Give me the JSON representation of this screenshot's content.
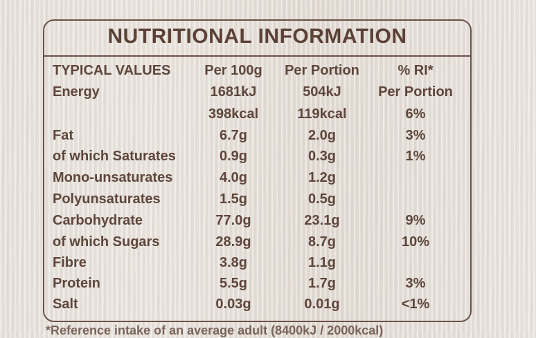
{
  "title": "NUTRITIONAL INFORMATION",
  "headers": {
    "label": "TYPICAL VALUES",
    "per100": "Per 100g",
    "portion": "Per Portion",
    "ri": "% RI*"
  },
  "rows": [
    {
      "label": "Energy",
      "per100": "1681kJ",
      "portion": "504kJ",
      "ri": "Per Portion"
    },
    {
      "label": "",
      "per100": "398kcal",
      "portion": "119kcal",
      "ri": "6%"
    },
    {
      "label": "Fat",
      "per100": "6.7g",
      "portion": "2.0g",
      "ri": "3%"
    },
    {
      "label": "of which Saturates",
      "per100": "0.9g",
      "portion": "0.3g",
      "ri": "1%"
    },
    {
      "label": "Mono-unsaturates",
      "per100": "4.0g",
      "portion": "1.2g",
      "ri": ""
    },
    {
      "label": "Polyunsaturates",
      "per100": "1.5g",
      "portion": "0.5g",
      "ri": ""
    },
    {
      "label": "Carbohydrate",
      "per100": "77.0g",
      "portion": "23.1g",
      "ri": "9%"
    },
    {
      "label": "of which Sugars",
      "per100": "28.9g",
      "portion": "8.7g",
      "ri": "10%"
    },
    {
      "label": "Fibre",
      "per100": "3.8g",
      "portion": "1.1g",
      "ri": ""
    },
    {
      "label": "Protein",
      "per100": "5.5g",
      "portion": "1.7g",
      "ri": "3%"
    },
    {
      "label": "Salt",
      "per100": "0.03g",
      "portion": "0.01g",
      "ri": "<1%"
    }
  ],
  "footnote": "*Reference intake of an average adult (8400kJ / 2000kcal)"
}
